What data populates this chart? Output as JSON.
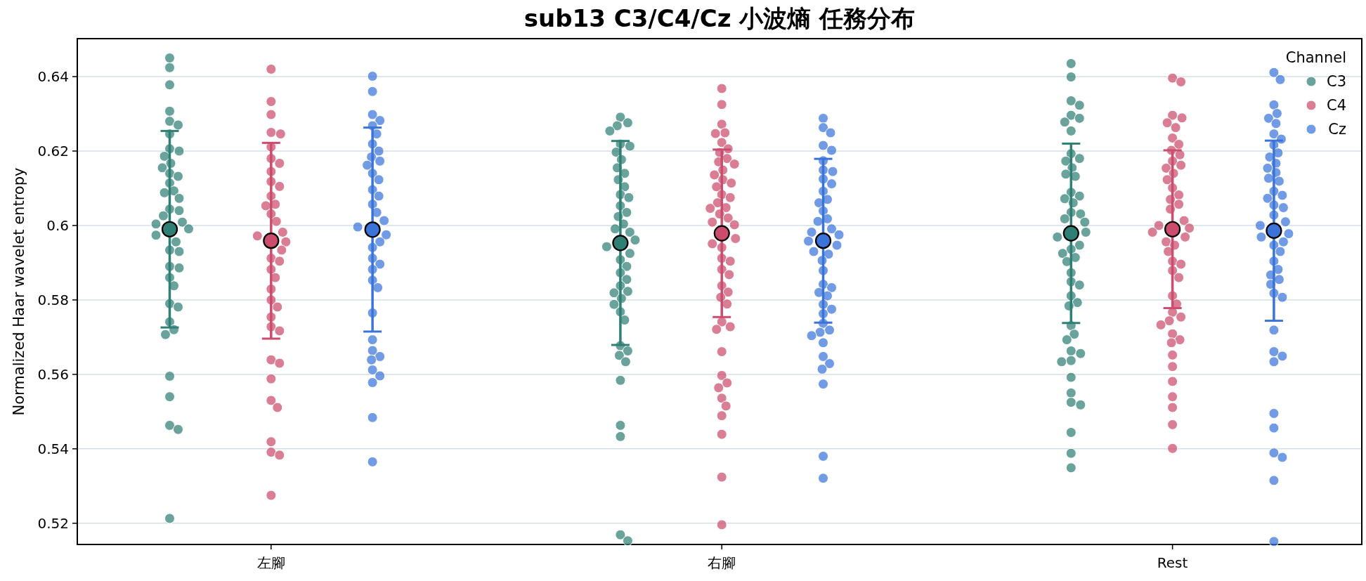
{
  "chart_data": {
    "type": "scatter",
    "title": "sub13 C3/C4/Cz 小波熵 任務分布",
    "ylabel": "Normalized Haar wavelet entropy",
    "legend_title": "Channel",
    "categories": [
      "左腳",
      "右腳",
      "Rest"
    ],
    "ylim": [
      0.5143,
      0.6502
    ],
    "yticks": [
      0.52,
      0.54,
      0.56,
      0.58,
      0.6,
      0.62,
      0.64
    ],
    "grid": "y",
    "legend": "top right",
    "marker": "circle",
    "series": [
      {
        "name": "C3",
        "color": "#2f7f74",
        "x": [
          "左腳",
          "左腳",
          "左腳",
          "左腳",
          "左腳",
          "左腳",
          "左腳",
          "左腳",
          "左腳",
          "左腳",
          "左腳",
          "左腳",
          "左腳",
          "左腳",
          "左腳",
          "左腳",
          "左腳",
          "左腳",
          "左腳",
          "左腳",
          "左腳",
          "左腳",
          "左腳",
          "左腳",
          "左腳",
          "左腳",
          "左腳",
          "左腳",
          "左腳",
          "左腳",
          "左腳",
          "左腳",
          "左腳",
          "左腳",
          "左腳",
          "左腳",
          "左腳",
          "左腳",
          "左腳",
          "左腳",
          "左腳",
          "左腳",
          "右腳",
          "右腳",
          "右腳",
          "右腳",
          "右腳",
          "右腳",
          "右腳",
          "右腳",
          "右腳",
          "右腳",
          "右腳",
          "右腳",
          "右腳",
          "右腳",
          "右腳",
          "右腳",
          "右腳",
          "右腳",
          "右腳",
          "右腳",
          "右腳",
          "右腳",
          "右腳",
          "右腳",
          "右腳",
          "右腳",
          "右腳",
          "右腳",
          "右腳",
          "右腳",
          "右腳",
          "右腳",
          "右腳",
          "右腳",
          "右腳",
          "右腳",
          "右腳",
          "右腳",
          "右腳",
          "右腳",
          "右腳",
          "右腳",
          "右腳",
          "Rest",
          "Rest",
          "Rest",
          "Rest",
          "Rest",
          "Rest",
          "Rest",
          "Rest",
          "Rest",
          "Rest",
          "Rest",
          "Rest",
          "Rest",
          "Rest",
          "Rest",
          "Rest",
          "Rest",
          "Rest",
          "Rest",
          "Rest",
          "Rest",
          "Rest",
          "Rest",
          "Rest",
          "Rest",
          "Rest",
          "Rest",
          "Rest",
          "Rest",
          "Rest",
          "Rest",
          "Rest",
          "Rest",
          "Rest",
          "Rest",
          "Rest",
          "Rest",
          "Rest",
          "Rest",
          "Rest",
          "Rest",
          "Rest",
          "Rest",
          "Rest",
          "Rest",
          "Rest",
          "Rest",
          "Rest",
          "Rest"
        ],
        "values": [
          0.645,
          0.6424,
          0.6378,
          0.6307,
          0.628,
          0.627,
          0.6246,
          0.6206,
          0.62,
          0.6186,
          0.6167,
          0.6155,
          0.6132,
          0.6114,
          0.6093,
          0.6073,
          0.6044,
          0.604,
          0.6009,
          0.5991,
          0.5974,
          0.5956,
          0.5934,
          0.593,
          0.589,
          0.5886,
          0.586,
          0.5838,
          0.579,
          0.5781,
          0.5741,
          0.572,
          0.5707,
          0.5595,
          0.554,
          0.5463,
          0.5452,
          0.5213,
          0.614,
          0.6088,
          0.6026,
          0.6004,
          0.6291,
          0.6276,
          0.6268,
          0.6254,
          0.6219,
          0.6213,
          0.6197,
          0.6177,
          0.6155,
          0.614,
          0.6123,
          0.6104,
          0.6083,
          0.6075,
          0.6053,
          0.6035,
          0.6024,
          0.6004,
          0.5991,
          0.5982,
          0.5961,
          0.5943,
          0.5925,
          0.5908,
          0.589,
          0.5873,
          0.5855,
          0.5838,
          0.5823,
          0.5819,
          0.5804,
          0.5788,
          0.5768,
          0.5746,
          0.5677,
          0.5663,
          0.5651,
          0.5634,
          0.5584,
          0.5463,
          0.5433,
          0.5169,
          0.5153,
          0.6435,
          0.6399,
          0.6335,
          0.6323,
          0.6296,
          0.6288,
          0.6278,
          0.6254,
          0.6193,
          0.618,
          0.6173,
          0.6155,
          0.6138,
          0.6132,
          0.6089,
          0.6079,
          0.6072,
          0.6061,
          0.6035,
          0.6031,
          0.6018,
          0.6009,
          0.5982,
          0.5969,
          0.5947,
          0.5936,
          0.5925,
          0.5914,
          0.5903,
          0.5873,
          0.5849,
          0.584,
          0.5811,
          0.5793,
          0.5784,
          0.5731,
          0.5708,
          0.5693,
          0.5663,
          0.5656,
          0.5637,
          0.5634,
          0.5592,
          0.555,
          0.5525,
          0.5518,
          0.5444,
          0.5388,
          0.5349
        ]
      },
      {
        "name": "C4",
        "color": "#cc4c6e",
        "x": [
          "左腳",
          "左腳",
          "左腳",
          "左腳",
          "左腳",
          "左腳",
          "左腳",
          "左腳",
          "左腳",
          "左腳",
          "左腳",
          "左腳",
          "左腳",
          "左腳",
          "左腳",
          "左腳",
          "左腳",
          "左腳",
          "左腳",
          "左腳",
          "左腳",
          "左腳",
          "左腳",
          "左腳",
          "左腳",
          "左腳",
          "左腳",
          "左腳",
          "左腳",
          "左腳",
          "左腳",
          "左腳",
          "左腳",
          "左腳",
          "左腳",
          "左腳",
          "左腳",
          "左腳",
          "左腳",
          "右腳",
          "右腳",
          "右腳",
          "右腳",
          "右腳",
          "右腳",
          "右腳",
          "右腳",
          "右腳",
          "右腳",
          "右腳",
          "右腳",
          "右腳",
          "右腳",
          "右腳",
          "右腳",
          "右腳",
          "右腳",
          "右腳",
          "右腳",
          "右腳",
          "右腳",
          "右腳",
          "右腳",
          "右腳",
          "右腳",
          "右腳",
          "右腳",
          "右腳",
          "右腳",
          "右腳",
          "右腳",
          "右腳",
          "右腳",
          "右腳",
          "右腳",
          "右腳",
          "右腳",
          "右腳",
          "右腳",
          "右腳",
          "右腳",
          "右腳",
          "右腳",
          "右腳",
          "右腳",
          "右腳",
          "右腳",
          "右腳",
          "Rest",
          "Rest",
          "Rest",
          "Rest",
          "Rest",
          "Rest",
          "Rest",
          "Rest",
          "Rest",
          "Rest",
          "Rest",
          "Rest",
          "Rest",
          "Rest",
          "Rest",
          "Rest",
          "Rest",
          "Rest",
          "Rest",
          "Rest",
          "Rest",
          "Rest",
          "Rest",
          "Rest",
          "Rest",
          "Rest",
          "Rest",
          "Rest",
          "Rest",
          "Rest",
          "Rest",
          "Rest",
          "Rest",
          "Rest",
          "Rest",
          "Rest",
          "Rest",
          "Rest",
          "Rest",
          "Rest",
          "Rest",
          "Rest",
          "Rest",
          "Rest",
          "Rest",
          "Rest",
          "Rest",
          "Rest"
        ],
        "values": [
          0.642,
          0.6333,
          0.6298,
          0.625,
          0.6246,
          0.6211,
          0.618,
          0.6167,
          0.6145,
          0.6118,
          0.6105,
          0.6079,
          0.6057,
          0.6053,
          0.6031,
          0.6011,
          0.5982,
          0.5972,
          0.5956,
          0.5934,
          0.5912,
          0.5904,
          0.5882,
          0.586,
          0.5829,
          0.58,
          0.5781,
          0.5754,
          0.5728,
          0.5717,
          0.5639,
          0.563,
          0.5588,
          0.553,
          0.5511,
          0.5419,
          0.5391,
          0.5383,
          0.5275,
          0.6368,
          0.6325,
          0.6272,
          0.6249,
          0.6247,
          0.6223,
          0.6206,
          0.6196,
          0.618,
          0.6171,
          0.6165,
          0.6149,
          0.6136,
          0.6123,
          0.6114,
          0.6104,
          0.6083,
          0.6075,
          0.6061,
          0.6048,
          0.6046,
          0.6031,
          0.602,
          0.6009,
          0.6002,
          0.5965,
          0.5951,
          0.5941,
          0.5912,
          0.5904,
          0.5882,
          0.5868,
          0.5838,
          0.5821,
          0.5807,
          0.5789,
          0.5741,
          0.5728,
          0.5721,
          0.5661,
          0.5597,
          0.5577,
          0.5564,
          0.5536,
          0.5515,
          0.5489,
          0.5439,
          0.5324,
          0.5196,
          0.6396,
          0.6386,
          0.6296,
          0.6289,
          0.6276,
          0.6263,
          0.6235,
          0.6218,
          0.6202,
          0.619,
          0.6173,
          0.6162,
          0.6154,
          0.614,
          0.6123,
          0.6101,
          0.6082,
          0.607,
          0.6057,
          0.6044,
          0.6013,
          0.6,
          0.5993,
          0.5982,
          0.5969,
          0.5956,
          0.5947,
          0.593,
          0.5904,
          0.5896,
          0.5879,
          0.586,
          0.5811,
          0.5789,
          0.5767,
          0.5754,
          0.5744,
          0.5733,
          0.5709,
          0.5693,
          0.5685,
          0.5652,
          0.5621,
          0.5581,
          0.554,
          0.5511,
          0.5465,
          0.5401
        ]
      },
      {
        "name": "Cz",
        "color": "#3a74d9",
        "x": [
          "左腳",
          "左腳",
          "左腳",
          "左腳",
          "左腳",
          "左腳",
          "左腳",
          "左腳",
          "左腳",
          "左腳",
          "左腳",
          "左腳",
          "左腳",
          "左腳",
          "左腳",
          "左腳",
          "左腳",
          "左腳",
          "左腳",
          "左腳",
          "左腳",
          "左腳",
          "左腳",
          "左腳",
          "左腳",
          "左腳",
          "左腳",
          "左腳",
          "左腳",
          "左腳",
          "左腳",
          "左腳",
          "左腳",
          "左腳",
          "左腳",
          "左腳",
          "左腳",
          "右腳",
          "右腳",
          "右腳",
          "右腳",
          "右腳",
          "右腳",
          "右腳",
          "右腳",
          "右腳",
          "右腳",
          "右腳",
          "右腳",
          "右腳",
          "右腳",
          "右腳",
          "右腳",
          "右腳",
          "右腳",
          "右腳",
          "右腳",
          "右腳",
          "右腳",
          "右腳",
          "右腳",
          "右腳",
          "右腳",
          "右腳",
          "右腳",
          "右腳",
          "右腳",
          "右腳",
          "右腳",
          "右腳",
          "右腳",
          "右腳",
          "右腳",
          "右腳",
          "右腳",
          "右腳",
          "右腳",
          "右腳",
          "右腳",
          "右腳",
          "Rest",
          "Rest",
          "Rest",
          "Rest",
          "Rest",
          "Rest",
          "Rest",
          "Rest",
          "Rest",
          "Rest",
          "Rest",
          "Rest",
          "Rest",
          "Rest",
          "Rest",
          "Rest",
          "Rest",
          "Rest",
          "Rest",
          "Rest",
          "Rest",
          "Rest",
          "Rest",
          "Rest",
          "Rest",
          "Rest",
          "Rest",
          "Rest",
          "Rest",
          "Rest",
          "Rest",
          "Rest",
          "Rest",
          "Rest",
          "Rest",
          "Rest",
          "Rest",
          "Rest",
          "Rest",
          "Rest",
          "Rest",
          "Rest",
          "Rest",
          "Rest",
          "Rest",
          "Rest"
        ],
        "values": [
          0.6401,
          0.636,
          0.6298,
          0.6282,
          0.6268,
          0.6246,
          0.6219,
          0.62,
          0.6184,
          0.6173,
          0.6162,
          0.614,
          0.6123,
          0.6096,
          0.6079,
          0.6057,
          0.6035,
          0.6013,
          0.5996,
          0.5975,
          0.5956,
          0.5941,
          0.5912,
          0.5896,
          0.5882,
          0.5853,
          0.5833,
          0.5765,
          0.5693,
          0.5664,
          0.5648,
          0.5639,
          0.5612,
          0.5596,
          0.5578,
          0.5484,
          0.5365,
          0.6288,
          0.6263,
          0.6249,
          0.6215,
          0.6202,
          0.6174,
          0.6149,
          0.6145,
          0.6125,
          0.6112,
          0.6092,
          0.607,
          0.6061,
          0.6039,
          0.6018,
          0.6011,
          0.5991,
          0.5982,
          0.5975,
          0.5958,
          0.5947,
          0.593,
          0.5923,
          0.5906,
          0.5879,
          0.5842,
          0.5833,
          0.582,
          0.5811,
          0.5788,
          0.5775,
          0.5763,
          0.5737,
          0.5719,
          0.5713,
          0.5704,
          0.5685,
          0.5648,
          0.5629,
          0.5614,
          0.5574,
          0.538,
          0.5321,
          0.6411,
          0.6392,
          0.6324,
          0.6301,
          0.6288,
          0.6274,
          0.6246,
          0.6232,
          0.6216,
          0.6195,
          0.6184,
          0.6167,
          0.6154,
          0.6142,
          0.6127,
          0.6119,
          0.6092,
          0.6081,
          0.6073,
          0.6055,
          0.6048,
          0.6028,
          0.601,
          0.6,
          0.5978,
          0.5969,
          0.5956,
          0.5947,
          0.593,
          0.5904,
          0.5882,
          0.5867,
          0.5855,
          0.5842,
          0.5818,
          0.5807,
          0.5719,
          0.5661,
          0.5649,
          0.5634,
          0.5495,
          0.5456,
          0.5389,
          0.5377,
          0.5315,
          0.5151
        ]
      },
      {
        "color": "#2f7f74",
        "x": [
          "左腳",
          "右腳",
          "Rest"
        ],
        "values": [
          0.599,
          0.5953,
          0.5979
        ],
        "errors": [
          0.0264,
          0.0274,
          0.0241
        ]
      },
      {
        "color": "#cc4c6e",
        "x": [
          "左腳",
          "右腳",
          "Rest"
        ],
        "values": [
          0.5959,
          0.5979,
          0.599
        ],
        "errors": [
          0.0263,
          0.0225,
          0.0212
        ]
      },
      {
        "color": "#3a74d9",
        "x": [
          "左腳",
          "右腳",
          "Rest"
        ],
        "values": [
          0.5989,
          0.5959,
          0.5986
        ],
        "errors": [
          0.0274,
          0.022,
          0.0242
        ]
      }
    ]
  }
}
